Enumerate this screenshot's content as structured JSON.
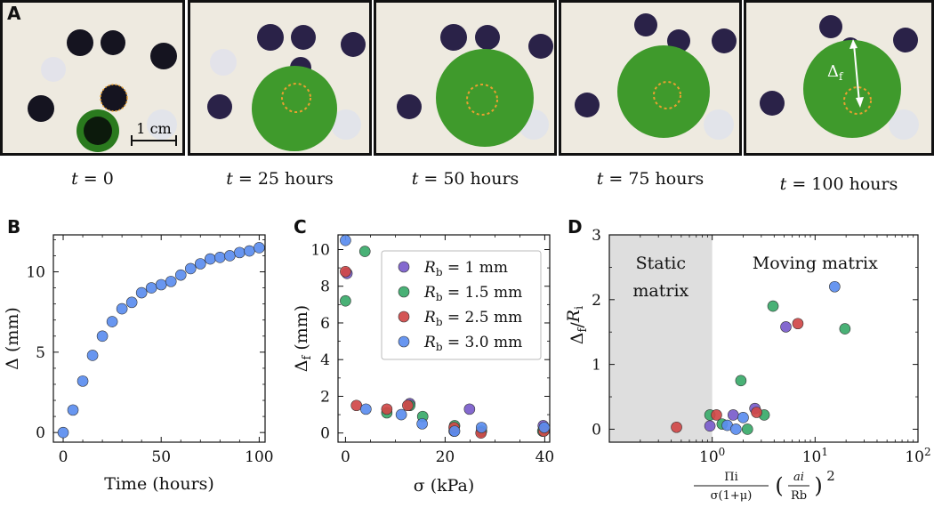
{
  "panel_a": {
    "letter": "A",
    "scale_bar": "1 cm",
    "delta_label": "Δ",
    "delta_sub": "f",
    "captions": [
      {
        "var": "t",
        "text": " = 0"
      },
      {
        "var": "t",
        "text": " = 25 hours"
      },
      {
        "var": "t",
        "text": " = 50 hours"
      },
      {
        "var": "t",
        "text": " = 75 hours"
      },
      {
        "var": "t",
        "text": " = 100 hours"
      }
    ],
    "colors": {
      "bead": "#2a2248",
      "blob": "#3f9a2c",
      "ring": "#e8a030",
      "matrix": "#ece8da"
    }
  },
  "panel_b_letter": "B",
  "panel_c_letter": "C",
  "panel_d_letter": "D",
  "chart_data": [
    {
      "id": "B",
      "type": "scatter",
      "xlabel": "Time (hours)",
      "ylabel": "Δ (mm)",
      "xlim": [
        -5,
        103
      ],
      "ylim": [
        -0.6,
        12.3
      ],
      "xticks": [
        0,
        50,
        100
      ],
      "yticks": [
        0,
        5,
        10
      ],
      "color": "#5b8def",
      "x": [
        0,
        5,
        10,
        15,
        20,
        25,
        30,
        35,
        40,
        45,
        50,
        55,
        60,
        65,
        70,
        75,
        80,
        85,
        90,
        95,
        100
      ],
      "y": [
        0,
        1.4,
        3.2,
        4.8,
        6.0,
        6.9,
        7.7,
        8.1,
        8.7,
        9.0,
        9.2,
        9.4,
        9.8,
        10.2,
        10.5,
        10.8,
        10.9,
        11.0,
        11.2,
        11.3,
        11.5
      ]
    },
    {
      "id": "C",
      "type": "scatter",
      "xlabel": "σ (kPa)",
      "ylabel": "Δf (mm)",
      "xlim": [
        -1.5,
        41
      ],
      "ylim": [
        -0.5,
        10.8
      ],
      "xticks": [
        0,
        20,
        40
      ],
      "yticks": [
        0,
        2,
        4,
        6,
        8,
        10
      ],
      "legend_position": "top-right",
      "series": [
        {
          "name": "Rb = 1 mm",
          "label": "R",
          "sub": "b",
          "rest": " = 1 mm",
          "color": "#7a5ccb",
          "x": [
            0.3,
            12.9,
            21.8,
            24.9,
            39.7
          ],
          "y": [
            8.7,
            1.6,
            0.1,
            1.3,
            0.4
          ]
        },
        {
          "name": "Rb = 1.5 mm",
          "label": "R",
          "sub": "b",
          "rest": " = 1.5 mm",
          "color": "#3aaa6a",
          "x": [
            0.0,
            3.9,
            8.3,
            12.9,
            15.5,
            21.9,
            27.3,
            39.6
          ],
          "y": [
            7.2,
            9.9,
            1.1,
            1.5,
            0.9,
            0.4,
            0.1,
            0.1
          ]
        },
        {
          "name": "Rb = 2.5 mm",
          "label": "R",
          "sub": "b",
          "rest": " = 2.5 mm",
          "color": "#d04848",
          "x": [
            0.0,
            2.2,
            8.3,
            12.5,
            21.8,
            27.2,
            39.8
          ],
          "y": [
            8.8,
            1.5,
            1.3,
            1.5,
            0.3,
            0.0,
            0.1
          ]
        },
        {
          "name": "Rb = 3.0 mm",
          "label": "R",
          "sub": "b",
          "rest": " = 3.0 mm",
          "color": "#5b8def",
          "x": [
            0.0,
            4.1,
            11.2,
            15.4,
            21.9,
            27.3,
            39.9
          ],
          "y": [
            10.5,
            1.3,
            1.0,
            0.5,
            0.1,
            0.3,
            0.3
          ]
        }
      ]
    },
    {
      "id": "D",
      "type": "scatter",
      "xscale": "log",
      "xlabel": "Πi / (σ(1+μ)) (ai/Rb)²",
      "ylabel": "Δf / Ri",
      "xlim": [
        0.1,
        100
      ],
      "ylim": [
        -0.2,
        3.0
      ],
      "xticks": [
        1,
        10,
        100
      ],
      "xtick_labels": [
        "10^0",
        "10^1",
        "10^2"
      ],
      "yticks": [
        0,
        1,
        2,
        3
      ],
      "region_static": "Static",
      "region_static_2": "matrix",
      "region_moving": "Moving matrix",
      "static_boundary_x": 1,
      "series": [
        {
          "name": "Rb = 1 mm",
          "color": "#7a5ccb",
          "x": [
            0.95,
            1.6,
            2.6,
            5.2
          ],
          "y": [
            0.05,
            0.22,
            0.32,
            1.58
          ]
        },
        {
          "name": "Rb = 1.5 mm",
          "color": "#3aaa6a",
          "x": [
            0.95,
            1.25,
            1.9,
            2.2,
            3.2,
            3.9,
            19.5
          ],
          "y": [
            0.22,
            0.08,
            0.75,
            0.0,
            0.22,
            1.9,
            1.55
          ]
        },
        {
          "name": "Rb = 2.5 mm",
          "color": "#d04848",
          "x": [
            0.45,
            1.1,
            2.7,
            6.8
          ],
          "y": [
            0.03,
            0.22,
            0.26,
            1.63
          ]
        },
        {
          "name": "Rb = 3.0 mm",
          "color": "#5b8def",
          "x": [
            1.4,
            1.7,
            2.0,
            15.5
          ],
          "y": [
            0.06,
            0.0,
            0.18,
            2.2
          ]
        }
      ]
    }
  ]
}
